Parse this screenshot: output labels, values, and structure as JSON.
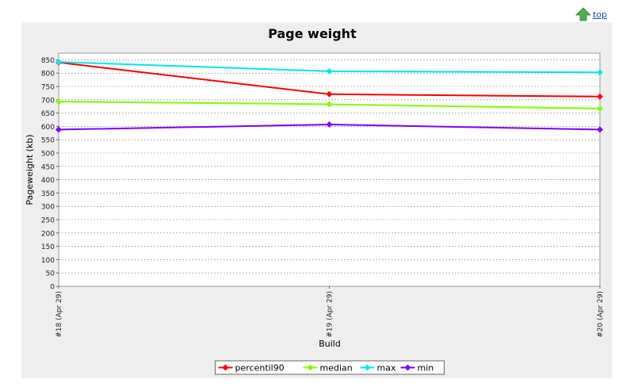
{
  "top_link": {
    "label": "top"
  },
  "chart_data": {
    "type": "line",
    "title": "Page weight",
    "xlabel": "Build",
    "ylabel": "Pageweight (kb)",
    "ylim": [
      0,
      875
    ],
    "ytick_step": 50,
    "grid": true,
    "legend_position": "bottom",
    "categories": [
      "#18 (Apr 29)",
      "#19 (Apr 29)",
      "#20 (Apr 29)"
    ],
    "series": [
      {
        "name": "percentil90",
        "color": "#ff0000",
        "values": [
          840,
          721,
          712
        ]
      },
      {
        "name": "median",
        "color": "#7fff00",
        "values": [
          693,
          683,
          667
        ]
      },
      {
        "name": "max",
        "color": "#00e5ee",
        "values": [
          842,
          807,
          803
        ]
      },
      {
        "name": "min",
        "color": "#7f00ff",
        "values": [
          588,
          607,
          588
        ]
      }
    ]
  },
  "colors": {
    "panel_bg": "#eeeeee",
    "plot_bg": "#ffffff",
    "grid": "#888888",
    "link": "#1a4fb8",
    "arrow": "#4caf50"
  },
  "icons": {
    "top_arrow": "up-arrow-icon"
  }
}
